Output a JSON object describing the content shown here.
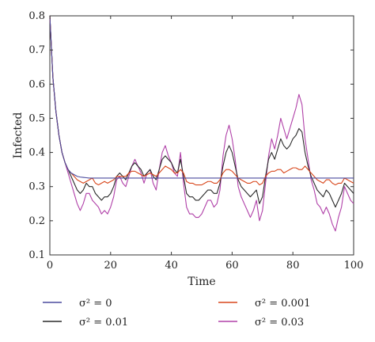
{
  "chart_data": {
    "type": "line",
    "title": "",
    "xlabel": "Time",
    "ylabel": "Infected",
    "xlim": [
      0,
      100
    ],
    "ylim": [
      0.1,
      0.8
    ],
    "xticks": [
      0,
      20,
      40,
      60,
      80,
      100
    ],
    "yticks": [
      0.1,
      0.2,
      0.3,
      0.4,
      0.5,
      0.6,
      0.7,
      0.8
    ],
    "grid": false,
    "legend_position": "below",
    "x": [
      0,
      1,
      2,
      3,
      4,
      5,
      6,
      7,
      8,
      9,
      10,
      11,
      12,
      13,
      14,
      15,
      16,
      17,
      18,
      19,
      20,
      21,
      22,
      23,
      24,
      25,
      26,
      27,
      28,
      29,
      30,
      31,
      32,
      33,
      34,
      35,
      36,
      37,
      38,
      39,
      40,
      41,
      42,
      43,
      44,
      45,
      46,
      47,
      48,
      49,
      50,
      51,
      52,
      53,
      54,
      55,
      56,
      57,
      58,
      59,
      60,
      61,
      62,
      63,
      64,
      65,
      66,
      67,
      68,
      69,
      70,
      71,
      72,
      73,
      74,
      75,
      76,
      77,
      78,
      79,
      80,
      81,
      82,
      83,
      84,
      85,
      86,
      87,
      88,
      89,
      90,
      91,
      92,
      93,
      94,
      95,
      96,
      97,
      98,
      99,
      100
    ],
    "series": [
      {
        "name": "σ² = 0",
        "color": "#4b4b9e",
        "values": [
          0.8,
          0.62,
          0.52,
          0.45,
          0.4,
          0.37,
          0.35,
          0.34,
          0.335,
          0.33,
          0.328,
          0.327,
          0.326,
          0.325,
          0.325,
          0.325,
          0.325,
          0.325,
          0.325,
          0.325,
          0.325,
          0.325,
          0.325,
          0.325,
          0.325,
          0.325,
          0.325,
          0.325,
          0.325,
          0.325,
          0.325,
          0.325,
          0.325,
          0.325,
          0.325,
          0.325,
          0.325,
          0.325,
          0.325,
          0.325,
          0.325,
          0.325,
          0.325,
          0.325,
          0.325,
          0.325,
          0.325,
          0.325,
          0.325,
          0.325,
          0.325,
          0.325,
          0.325,
          0.325,
          0.325,
          0.325,
          0.325,
          0.325,
          0.325,
          0.325,
          0.325,
          0.325,
          0.325,
          0.325,
          0.325,
          0.325,
          0.325,
          0.325,
          0.325,
          0.325,
          0.325,
          0.325,
          0.325,
          0.325,
          0.325,
          0.325,
          0.325,
          0.325,
          0.325,
          0.325,
          0.325,
          0.325,
          0.325,
          0.325,
          0.325,
          0.325,
          0.325,
          0.325,
          0.325,
          0.325,
          0.325,
          0.325,
          0.325,
          0.325,
          0.325,
          0.325,
          0.325,
          0.325,
          0.325,
          0.325,
          0.325
        ]
      },
      {
        "name": "σ² = 0.001",
        "color": "#d8461b",
        "values": [
          0.8,
          0.62,
          0.52,
          0.45,
          0.4,
          0.37,
          0.35,
          0.34,
          0.33,
          0.32,
          0.315,
          0.31,
          0.315,
          0.32,
          0.325,
          0.31,
          0.305,
          0.31,
          0.315,
          0.31,
          0.315,
          0.32,
          0.33,
          0.33,
          0.33,
          0.33,
          0.34,
          0.345,
          0.345,
          0.34,
          0.335,
          0.33,
          0.335,
          0.34,
          0.335,
          0.33,
          0.34,
          0.35,
          0.36,
          0.355,
          0.35,
          0.34,
          0.34,
          0.35,
          0.34,
          0.315,
          0.31,
          0.31,
          0.305,
          0.305,
          0.305,
          0.31,
          0.315,
          0.315,
          0.31,
          0.31,
          0.32,
          0.34,
          0.35,
          0.35,
          0.345,
          0.335,
          0.325,
          0.32,
          0.315,
          0.31,
          0.31,
          0.315,
          0.315,
          0.305,
          0.31,
          0.33,
          0.34,
          0.345,
          0.345,
          0.35,
          0.35,
          0.34,
          0.345,
          0.35,
          0.355,
          0.355,
          0.35,
          0.35,
          0.36,
          0.35,
          0.34,
          0.33,
          0.32,
          0.315,
          0.31,
          0.32,
          0.32,
          0.31,
          0.305,
          0.31,
          0.31,
          0.325,
          0.32,
          0.315,
          0.31
        ]
      },
      {
        "name": "σ² = 0.01",
        "color": "#2a2a2a",
        "values": [
          0.8,
          0.62,
          0.52,
          0.45,
          0.4,
          0.37,
          0.35,
          0.33,
          0.31,
          0.29,
          0.28,
          0.29,
          0.31,
          0.3,
          0.3,
          0.28,
          0.27,
          0.26,
          0.27,
          0.27,
          0.28,
          0.3,
          0.33,
          0.34,
          0.33,
          0.32,
          0.34,
          0.36,
          0.37,
          0.36,
          0.35,
          0.33,
          0.34,
          0.35,
          0.33,
          0.32,
          0.35,
          0.38,
          0.39,
          0.38,
          0.37,
          0.35,
          0.34,
          0.38,
          0.33,
          0.28,
          0.27,
          0.27,
          0.26,
          0.26,
          0.27,
          0.28,
          0.29,
          0.29,
          0.28,
          0.28,
          0.31,
          0.36,
          0.4,
          0.42,
          0.4,
          0.36,
          0.32,
          0.3,
          0.29,
          0.28,
          0.27,
          0.28,
          0.29,
          0.25,
          0.27,
          0.33,
          0.38,
          0.4,
          0.38,
          0.41,
          0.44,
          0.42,
          0.41,
          0.42,
          0.44,
          0.45,
          0.47,
          0.46,
          0.4,
          0.36,
          0.33,
          0.31,
          0.29,
          0.28,
          0.27,
          0.29,
          0.28,
          0.26,
          0.24,
          0.26,
          0.28,
          0.31,
          0.3,
          0.29,
          0.28
        ]
      },
      {
        "name": "σ² = 0.03",
        "color": "#b040a8",
        "values": [
          0.8,
          0.62,
          0.52,
          0.45,
          0.4,
          0.37,
          0.34,
          0.31,
          0.28,
          0.25,
          0.23,
          0.25,
          0.28,
          0.28,
          0.26,
          0.25,
          0.24,
          0.22,
          0.23,
          0.22,
          0.24,
          0.27,
          0.32,
          0.33,
          0.31,
          0.3,
          0.33,
          0.36,
          0.38,
          0.36,
          0.34,
          0.31,
          0.34,
          0.35,
          0.31,
          0.29,
          0.35,
          0.4,
          0.42,
          0.39,
          0.37,
          0.34,
          0.33,
          0.4,
          0.31,
          0.24,
          0.22,
          0.22,
          0.21,
          0.21,
          0.22,
          0.24,
          0.26,
          0.26,
          0.24,
          0.25,
          0.29,
          0.39,
          0.45,
          0.48,
          0.44,
          0.38,
          0.3,
          0.27,
          0.25,
          0.23,
          0.21,
          0.23,
          0.26,
          0.2,
          0.23,
          0.31,
          0.39,
          0.44,
          0.41,
          0.45,
          0.5,
          0.47,
          0.44,
          0.47,
          0.5,
          0.53,
          0.57,
          0.54,
          0.44,
          0.38,
          0.32,
          0.29,
          0.25,
          0.24,
          0.22,
          0.24,
          0.22,
          0.19,
          0.17,
          0.21,
          0.24,
          0.3,
          0.28,
          0.26,
          0.25
        ]
      }
    ]
  }
}
